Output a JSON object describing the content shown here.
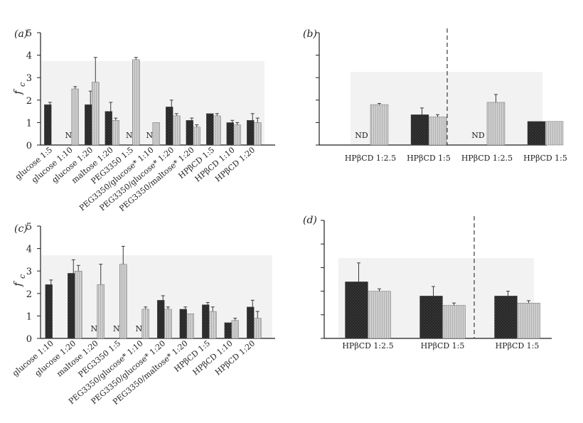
{
  "chart_data": [
    {
      "panel": "(a)",
      "type": "bar",
      "ylabel": "f",
      "ylabel_sub": "c",
      "ylim": [
        0,
        5
      ],
      "yticks": [
        "0",
        "1",
        "2",
        "3",
        "4",
        "5"
      ],
      "grid": false,
      "missing_label": "ND",
      "categories": [
        "glucose 1:5",
        "glucose 1:10",
        "glucose 1:20",
        "maltose 1:20",
        "PEG3350 1:5",
        "PEG3350/glucose* 1:10",
        "PEG3350/glucose* 1:20",
        "PEG3350/maltose* 1:20",
        "HPβCD 1:5",
        "HPβCD 1:10",
        "HPβCD 1:20"
      ],
      "series": [
        {
          "name": "dark",
          "values": [
            1.8,
            null,
            1.8,
            1.5,
            null,
            null,
            1.7,
            1.1,
            1.4,
            1.0,
            1.1
          ],
          "errors": [
            0.1,
            null,
            0.6,
            0.4,
            null,
            null,
            0.3,
            0.1,
            0.0,
            0.1,
            0.3
          ]
        },
        {
          "name": "light",
          "values": [
            null,
            2.5,
            2.8,
            1.1,
            3.8,
            1.0,
            1.3,
            0.8,
            1.3,
            0.9,
            1.0
          ],
          "errors": [
            null,
            0.1,
            1.1,
            0.1,
            0.1,
            0.0,
            0.1,
            0.1,
            0.1,
            0.1,
            0.2
          ]
        }
      ]
    },
    {
      "panel": "(b)",
      "type": "bar",
      "ylim": [
        0,
        5
      ],
      "grid": false,
      "missing_label": "ND",
      "categories": [
        "HPβCD 1:2.5",
        "HPβCD 1:5",
        "HPβCD 1:2.5",
        "HPβCD 1:5"
      ],
      "divider_after": 2,
      "series": [
        {
          "name": "dark",
          "values": [
            null,
            1.35,
            null,
            1.05
          ],
          "errors": [
            null,
            0.3,
            null,
            0.0
          ]
        },
        {
          "name": "light",
          "values": [
            1.8,
            1.25,
            1.9,
            1.05
          ],
          "errors": [
            0.05,
            0.1,
            0.35,
            0.0
          ]
        }
      ]
    },
    {
      "panel": "(c)",
      "type": "bar",
      "ylabel": "f",
      "ylabel_sub": "c",
      "ylim": [
        0,
        5
      ],
      "yticks": [
        "0",
        "1",
        "2",
        "3",
        "4",
        "5"
      ],
      "grid": false,
      "missing_label": "ND",
      "categories": [
        "glucose 1:10",
        "glucose 1:20",
        "maltose 1:20",
        "PEG3350 1:5",
        "PEG3350/glucose* 1:10",
        "PEG3350/glucose* 1:20",
        "PEG3350/maltose* 1:20",
        "HPβCD 1:5",
        "HPβCD 1:10",
        "HPβCD 1:20"
      ],
      "series": [
        {
          "name": "dark",
          "values": [
            2.4,
            2.9,
            null,
            null,
            null,
            1.7,
            1.3,
            1.5,
            0.7,
            1.4
          ],
          "errors": [
            0.2,
            0.6,
            null,
            null,
            null,
            0.2,
            0.1,
            0.1,
            0.0,
            0.3
          ]
        },
        {
          "name": "light",
          "values": [
            null,
            3.0,
            2.4,
            3.3,
            1.3,
            1.3,
            1.1,
            1.2,
            0.8,
            0.9
          ],
          "errors": [
            null,
            0.25,
            0.9,
            0.8,
            0.1,
            0.1,
            0.0,
            0.2,
            0.1,
            0.3
          ]
        }
      ]
    },
    {
      "panel": "(d)",
      "type": "bar",
      "ylim": [
        0,
        5
      ],
      "grid": false,
      "categories": [
        "HPβCD 1:2.5",
        "HPβCD 1:5",
        "HPβCD 1:5"
      ],
      "divider_after": 2,
      "series": [
        {
          "name": "dark",
          "values": [
            2.4,
            1.8,
            1.8
          ],
          "errors": [
            0.8,
            0.4,
            0.2
          ]
        },
        {
          "name": "light",
          "values": [
            2.0,
            1.4,
            1.5
          ],
          "errors": [
            0.1,
            0.1,
            0.1
          ]
        }
      ]
    }
  ],
  "colors": {
    "dark": "#2a2a2a",
    "light": "#c4c4c4",
    "axis": "#1e1e1e",
    "panel_bg": "#f2f2f2"
  }
}
